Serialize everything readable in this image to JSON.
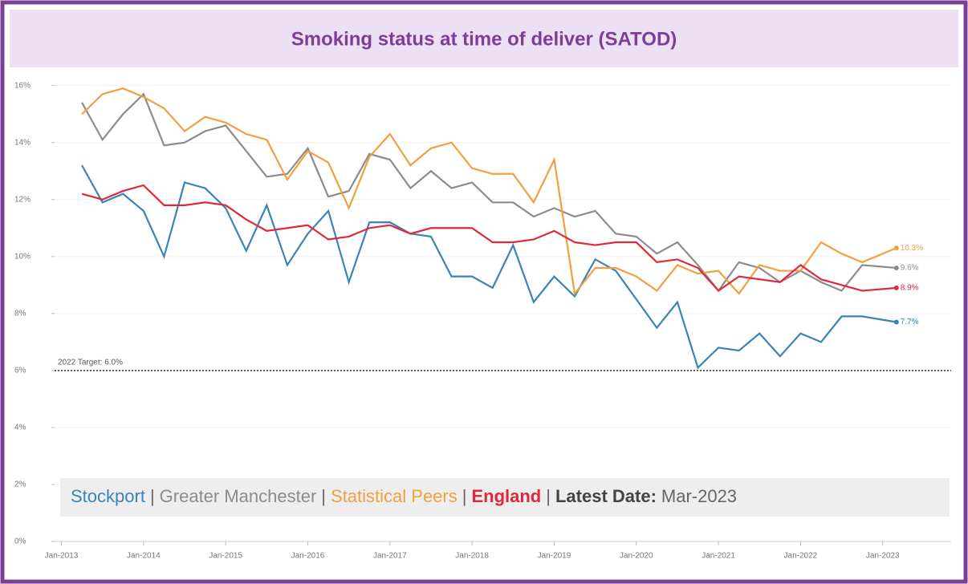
{
  "chart_data": {
    "type": "line",
    "title": "Smoking status at time of deliver (SATOD)",
    "x": [
      "2013-04",
      "2013-07",
      "2013-10",
      "2014-01",
      "2014-04",
      "2014-07",
      "2014-10",
      "2015-01",
      "2015-04",
      "2015-07",
      "2015-10",
      "2016-01",
      "2016-04",
      "2016-07",
      "2016-10",
      "2017-01",
      "2017-04",
      "2017-07",
      "2017-10",
      "2018-01",
      "2018-04",
      "2018-07",
      "2018-10",
      "2019-01",
      "2019-04",
      "2019-07",
      "2019-10",
      "2020-01",
      "2020-04",
      "2020-07",
      "2020-10",
      "2021-01",
      "2021-04",
      "2021-07",
      "2021-10",
      "2022-01",
      "2022-04",
      "2022-07",
      "2022-10",
      "2023-03"
    ],
    "series": [
      {
        "name": "Stockport",
        "color": "#3a84b5",
        "last_label": "7.7%",
        "values": [
          13.2,
          11.9,
          12.2,
          11.6,
          10.0,
          12.6,
          12.4,
          11.7,
          10.2,
          11.8,
          9.7,
          10.8,
          11.6,
          9.1,
          11.2,
          11.2,
          10.8,
          10.7,
          9.3,
          9.3,
          8.9,
          10.4,
          8.4,
          9.3,
          8.6,
          9.9,
          9.5,
          8.5,
          7.5,
          8.4,
          6.1,
          6.8,
          6.7,
          7.3,
          6.5,
          7.3,
          7.0,
          7.9,
          7.9,
          7.7
        ]
      },
      {
        "name": "Greater Manchester",
        "color": "#8c8c8c",
        "last_label": "9.6%",
        "values": [
          15.4,
          14.1,
          15.0,
          15.7,
          13.9,
          14.0,
          14.4,
          14.6,
          13.7,
          12.8,
          12.9,
          13.8,
          12.1,
          12.3,
          13.6,
          13.4,
          12.4,
          13.0,
          12.4,
          12.6,
          11.9,
          11.9,
          11.4,
          11.7,
          11.4,
          11.6,
          10.8,
          10.7,
          10.1,
          10.5,
          9.7,
          8.8,
          9.8,
          9.6,
          9.1,
          9.5,
          9.1,
          8.8,
          9.7,
          9.6
        ]
      },
      {
        "name": "Statistical Peers",
        "color": "#f0a040",
        "last_label": "10.3%",
        "values": [
          15.0,
          15.7,
          15.9,
          15.6,
          15.2,
          14.4,
          14.9,
          14.7,
          14.3,
          14.1,
          12.7,
          13.7,
          13.3,
          11.7,
          13.5,
          14.3,
          13.2,
          13.8,
          14.0,
          13.1,
          12.9,
          12.9,
          11.9,
          13.4,
          8.7,
          9.6,
          9.6,
          9.3,
          8.8,
          9.7,
          9.4,
          9.5,
          8.7,
          9.7,
          9.5,
          9.5,
          10.5,
          10.1,
          9.8,
          10.3
        ]
      },
      {
        "name": "England",
        "color": "#e0283c",
        "last_label": "8.9%",
        "values": [
          12.2,
          12.0,
          12.3,
          12.5,
          11.8,
          11.8,
          11.9,
          11.8,
          11.3,
          10.9,
          11.0,
          11.1,
          10.6,
          10.7,
          11.0,
          11.1,
          10.8,
          11.0,
          11.0,
          11.0,
          10.5,
          10.5,
          10.6,
          10.9,
          10.5,
          10.4,
          10.5,
          10.5,
          9.8,
          9.9,
          9.6,
          8.8,
          9.3,
          9.2,
          9.1,
          9.7,
          9.2,
          9.0,
          8.8,
          8.9
        ]
      }
    ],
    "legend_separator": "|",
    "latest_date_label": "Latest Date",
    "latest_date_sep": ":",
    "latest_date": "Mar-2023",
    "target": {
      "value": 6,
      "label": "2022 Target: 6.0%"
    },
    "xlim": [
      "2012-12",
      "2023-11"
    ],
    "xticks": [
      {
        "value": "2013-01",
        "label": "Jan-2013"
      },
      {
        "value": "2014-01",
        "label": "Jan-2014"
      },
      {
        "value": "2015-01",
        "label": "Jan-2015"
      },
      {
        "value": "2016-01",
        "label": "Jan-2016"
      },
      {
        "value": "2017-01",
        "label": "Jan-2017"
      },
      {
        "value": "2018-01",
        "label": "Jan-2018"
      },
      {
        "value": "2019-01",
        "label": "Jan-2019"
      },
      {
        "value": "2020-01",
        "label": "Jan-2020"
      },
      {
        "value": "2021-01",
        "label": "Jan-2021"
      },
      {
        "value": "2022-01",
        "label": "Jan-2022"
      },
      {
        "value": "2023-01",
        "label": "Jan-2023"
      }
    ],
    "ylim": [
      0,
      16.3
    ],
    "yticks": [
      {
        "value": 0,
        "label": "0%"
      },
      {
        "value": 2,
        "label": "2%"
      },
      {
        "value": 4,
        "label": "4%"
      },
      {
        "value": 6,
        "label": "6%"
      },
      {
        "value": 8,
        "label": "8%"
      },
      {
        "value": 10,
        "label": "10%"
      },
      {
        "value": 12,
        "label": "12%"
      },
      {
        "value": 14,
        "label": "14%"
      },
      {
        "value": 16,
        "label": "16%"
      }
    ],
    "grid": true
  }
}
